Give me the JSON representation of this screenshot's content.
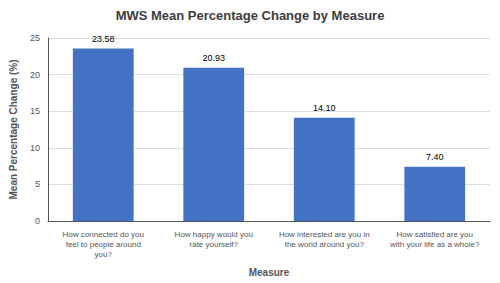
{
  "chart_data": {
    "type": "bar",
    "title": "MWS Mean Percentage Change by Measure",
    "x_label": "Measure",
    "y_label": "Mean Percentage Change (%)",
    "categories": [
      "How connected do you\nfeel to people around\nyou?",
      "How happy would you\nrate yourself?",
      "How interested are you in\nthe world around you?",
      "How satisfied are you\nwith your life as a whole?"
    ],
    "values": [
      23.58,
      20.93,
      14.1,
      7.4
    ],
    "value_labels": [
      "23.58",
      "20.93",
      "14.10",
      "7.40"
    ],
    "data_labels": true,
    "color": "#4472C4",
    "ylim": [
      0,
      25
    ],
    "yticks": [
      0,
      5,
      10,
      15,
      20,
      25
    ],
    "grid": true
  }
}
